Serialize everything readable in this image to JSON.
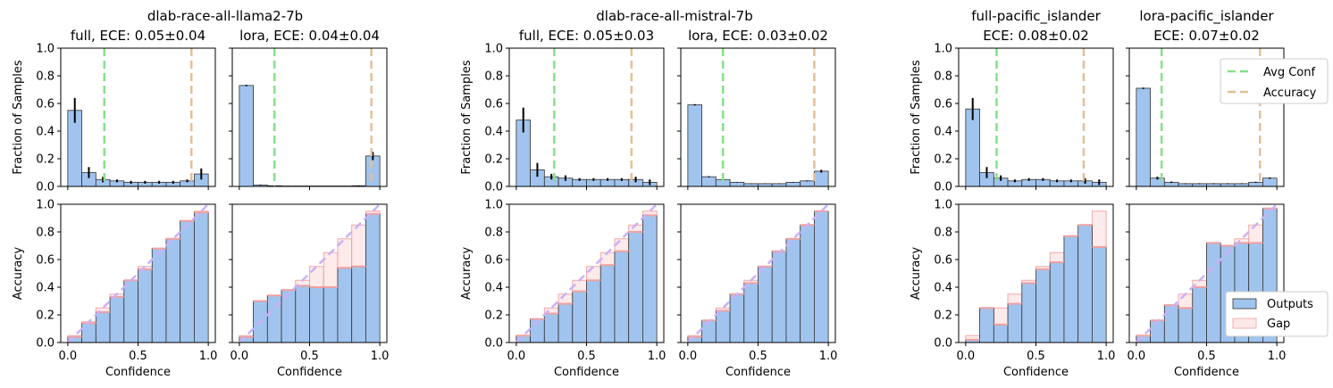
{
  "colors": {
    "outputs": "#a1c4ee",
    "gap_fill": "#fde8e8",
    "gap_edge": "#f0a0a0",
    "avg_conf": "#86e08a",
    "accuracy": "#e4bf98",
    "ideal": "#ccb0f7",
    "errorbar": "#000000"
  },
  "legend_top": {
    "placement": "upper right, last panel",
    "items": [
      "Avg Conf",
      "Accuracy"
    ]
  },
  "legend_bottom": {
    "placement": "lower right, last panel",
    "items": [
      "Outputs",
      "Gap"
    ]
  },
  "chart_data": [
    {
      "type": "bar",
      "group_title": "dlab-race-all-llama2-7b",
      "title": "full, ECE: 0.05±0.04",
      "show_ylabels": true,
      "hist": {
        "values": [
          0.55,
          0.1,
          0.05,
          0.04,
          0.03,
          0.03,
          0.03,
          0.03,
          0.04,
          0.09
        ],
        "err": [
          0.09,
          0.04,
          0.02,
          0.01,
          0.01,
          0.01,
          0.01,
          0.01,
          0.01,
          0.04
        ]
      },
      "avg_conf": 0.26,
      "accuracy": 0.88,
      "calib": {
        "acc": [
          0.04,
          0.14,
          0.22,
          0.33,
          0.45,
          0.53,
          0.68,
          0.75,
          0.88,
          0.94
        ],
        "show_ideal": true
      }
    },
    {
      "type": "bar",
      "group_title": "",
      "title": "lora, ECE: 0.04±0.04",
      "show_ylabels": false,
      "hist": {
        "values": [
          0.73,
          0.01,
          0.005,
          0.003,
          0.003,
          0.003,
          0.003,
          0.003,
          0.005,
          0.22
        ],
        "err": [
          0.005,
          0.003,
          0.001,
          0.001,
          0.001,
          0.001,
          0.001,
          0.001,
          0.002,
          0.03
        ]
      },
      "avg_conf": 0.25,
      "accuracy": 0.94,
      "calib": {
        "acc": [
          0.04,
          0.3,
          0.34,
          0.38,
          0.41,
          0.4,
          0.4,
          0.54,
          0.55,
          0.93
        ],
        "show_ideal": true
      }
    },
    {
      "type": "bar",
      "group_title": "dlab-race-all-mistral-7b",
      "title": "full, ECE: 0.05±0.03",
      "show_ylabels": true,
      "hist": {
        "values": [
          0.48,
          0.12,
          0.07,
          0.06,
          0.05,
          0.05,
          0.05,
          0.05,
          0.05,
          0.03
        ],
        "err": [
          0.09,
          0.05,
          0.02,
          0.02,
          0.01,
          0.01,
          0.01,
          0.01,
          0.02,
          0.02
        ]
      },
      "avg_conf": 0.27,
      "accuracy": 0.82,
      "calib": {
        "acc": [
          0.05,
          0.17,
          0.21,
          0.28,
          0.37,
          0.45,
          0.56,
          0.66,
          0.8,
          0.92
        ],
        "show_ideal": true
      }
    },
    {
      "type": "bar",
      "group_title": "",
      "title": "lora, ECE: 0.03±0.02",
      "show_ylabels": false,
      "hist": {
        "values": [
          0.59,
          0.07,
          0.05,
          0.03,
          0.02,
          0.02,
          0.02,
          0.03,
          0.04,
          0.11
        ],
        "err": [
          0.005,
          0.004,
          0.003,
          0.002,
          0.002,
          0.002,
          0.002,
          0.002,
          0.003,
          0.01
        ]
      },
      "avg_conf": 0.25,
      "accuracy": 0.9,
      "calib": {
        "acc": [
          0.04,
          0.16,
          0.23,
          0.35,
          0.43,
          0.55,
          0.66,
          0.75,
          0.85,
          0.95
        ],
        "show_ideal": true
      }
    },
    {
      "type": "bar",
      "group_title": "",
      "title": "full-pacific_islander\nECE: 0.08±0.02",
      "show_ylabels": true,
      "hist": {
        "values": [
          0.56,
          0.1,
          0.06,
          0.04,
          0.05,
          0.05,
          0.04,
          0.04,
          0.04,
          0.03
        ],
        "err": [
          0.08,
          0.04,
          0.02,
          0.01,
          0.01,
          0.01,
          0.01,
          0.01,
          0.02,
          0.02
        ]
      },
      "avg_conf": 0.22,
      "accuracy": 0.84,
      "calib": {
        "acc": [
          0.02,
          0.25,
          0.13,
          0.28,
          0.43,
          0.53,
          0.58,
          0.77,
          0.85,
          0.69
        ],
        "show_ideal": false
      }
    },
    {
      "type": "bar",
      "group_title": "",
      "title": "lora-pacific_islander\nECE: 0.07±0.02",
      "show_ylabels": false,
      "hist": {
        "values": [
          0.71,
          0.06,
          0.03,
          0.02,
          0.02,
          0.02,
          0.02,
          0.02,
          0.03,
          0.06
        ],
        "err": [
          0.005,
          0.01,
          0.005,
          0.003,
          0.003,
          0.003,
          0.003,
          0.003,
          0.004,
          0.005
        ]
      },
      "avg_conf": 0.18,
      "accuracy": 0.88,
      "calib": {
        "acc": [
          0.05,
          0.16,
          0.27,
          0.25,
          0.4,
          0.72,
          0.7,
          0.72,
          0.72,
          0.97
        ],
        "show_ideal": true
      }
    }
  ],
  "axes": {
    "hist_ylabel": "Fraction of Samples",
    "calib_ylabel": "Accuracy",
    "xlabel": "Confidence",
    "xlim": [
      -0.05,
      1.05
    ],
    "ylim": [
      0,
      1
    ],
    "yticks": [
      "0.0",
      "0.2",
      "0.4",
      "0.6",
      "0.8",
      "1.0"
    ],
    "xticks": [
      "0.0",
      "0.5",
      "1.0"
    ]
  }
}
